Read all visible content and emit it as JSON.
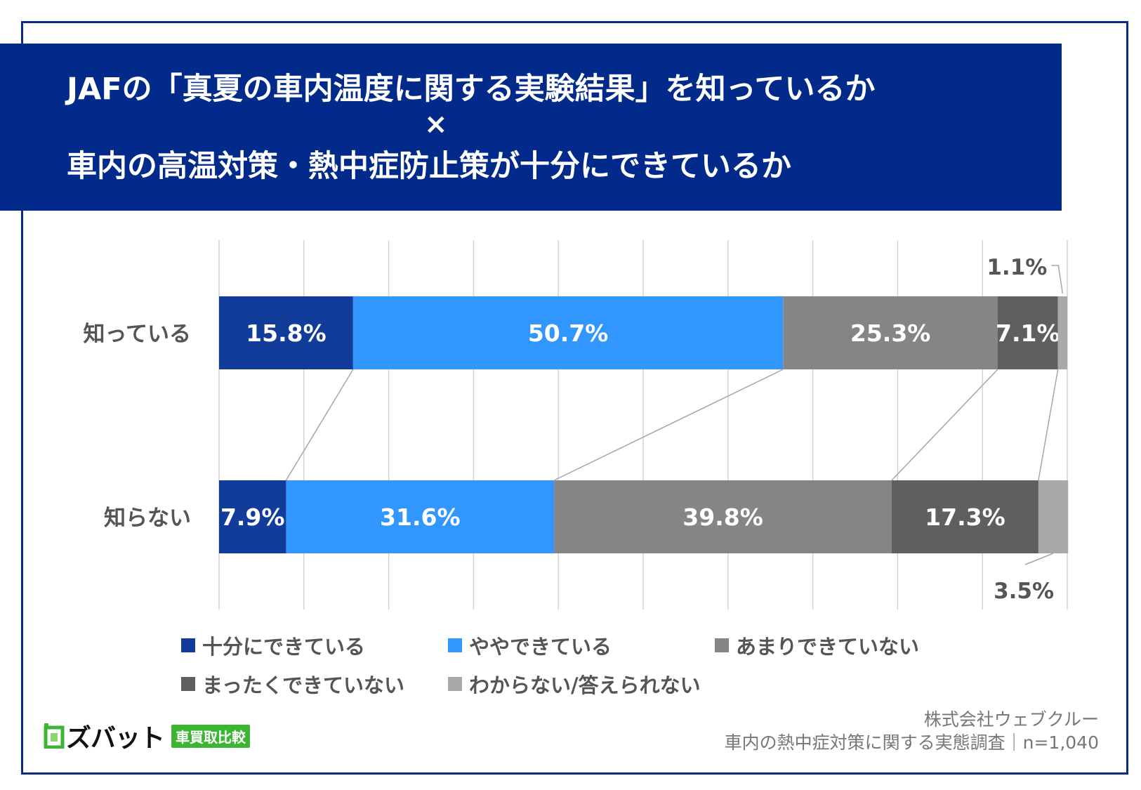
{
  "title": {
    "line1": "JAFの「真夏の車内温度に関する実験結果」を知っているか",
    "cross": "×",
    "line2": "車内の高温対策・熱中症防止策が十分にできているか"
  },
  "chart_data": {
    "type": "bar",
    "orientation": "horizontal",
    "stacked": true,
    "percent_stacked": true,
    "categories": [
      "知っている",
      "知らない"
    ],
    "series": [
      {
        "name": "十分にできている",
        "color": "#123c9a",
        "values": [
          15.8,
          7.9
        ],
        "labels": [
          "15.8%",
          "7.9%"
        ]
      },
      {
        "name": "ややできている",
        "color": "#3296ff",
        "values": [
          50.7,
          31.6
        ],
        "labels": [
          "50.7%",
          "31.6%"
        ]
      },
      {
        "name": "あまりできていない",
        "color": "#858585",
        "values": [
          25.3,
          39.8
        ],
        "labels": [
          "25.3%",
          "39.8%"
        ]
      },
      {
        "name": "まったくできていない",
        "color": "#5f5f5f",
        "values": [
          7.1,
          17.3
        ],
        "labels": [
          "7.1%",
          "17.3%"
        ]
      },
      {
        "name": "わからない/答えられない",
        "color": "#a9a9a9",
        "values": [
          1.1,
          3.5
        ],
        "labels": [
          "1.1%",
          "3.5%"
        ]
      }
    ],
    "xlim": [
      0,
      100
    ],
    "grid": true,
    "legend_position": "bottom"
  },
  "footer": {
    "company": "株式会社ウェブクルー",
    "survey": "車内の熱中症対策に関する実態調査｜n=1,040"
  },
  "logo": {
    "name": "ズバット",
    "badge": "車買取比較"
  },
  "colors": {
    "title_band": "#012a8a",
    "frame": "#0b2a8c",
    "logo_green": "#3db534"
  }
}
